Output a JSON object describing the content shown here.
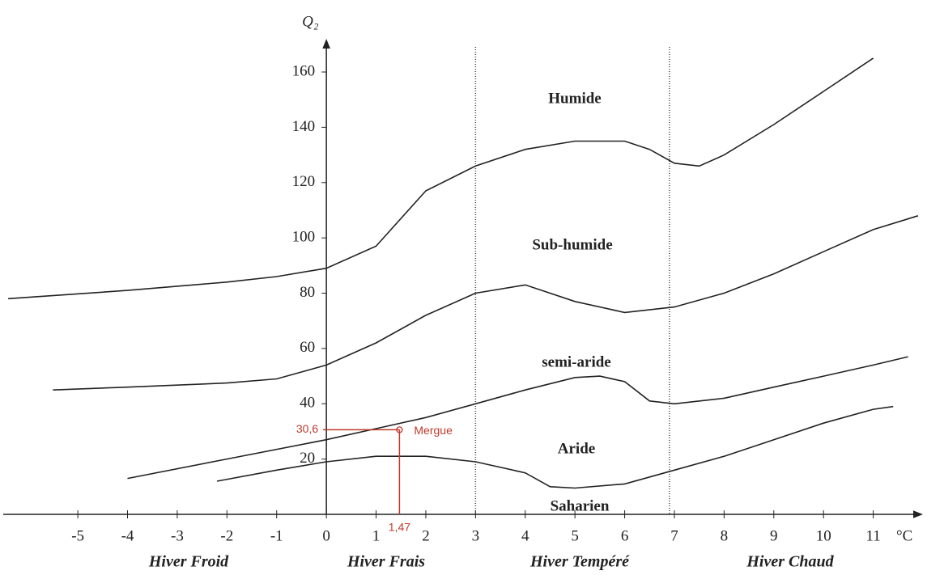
{
  "chart_data": {
    "type": "line",
    "y_label": "Q₂",
    "x_label": "°C",
    "xlim": [
      -6.5,
      12
    ],
    "ylim": [
      0,
      172
    ],
    "xticks": [
      -5,
      -4,
      -3,
      -2,
      -1,
      0,
      1,
      2,
      3,
      4,
      5,
      6,
      7,
      8,
      9,
      10,
      11
    ],
    "yticks": [
      20,
      40,
      60,
      80,
      100,
      120,
      140,
      160
    ],
    "dividers": [
      3,
      6.9
    ],
    "zones": [
      "Humide",
      "Sub-humide",
      "semi-aride",
      "Aride",
      "Saharien"
    ],
    "winters": [
      "Hiver Froid",
      "Hiver Frais",
      "Hiver Tempéré",
      "Hiver Chaud"
    ],
    "color": "#222222",
    "series": [
      {
        "x": [
          -6.4,
          -4,
          -2,
          -1,
          0,
          1,
          2,
          3,
          4,
          5,
          6,
          6.5,
          7,
          7.5,
          8,
          9,
          10,
          11
        ],
        "values": [
          78,
          81,
          84,
          86,
          89,
          97,
          117,
          126,
          132,
          135,
          135,
          132,
          127,
          126,
          130,
          141,
          153,
          165
        ]
      },
      {
        "x": [
          -5.5,
          -4,
          -2,
          -1,
          0,
          1,
          2,
          3,
          4,
          5,
          6,
          7,
          8,
          9,
          10,
          11,
          11.9
        ],
        "values": [
          45,
          46,
          47.5,
          49,
          54,
          62,
          72,
          80,
          83,
          77,
          73,
          75,
          80,
          87,
          95,
          103,
          108
        ]
      },
      {
        "x": [
          -4,
          -2,
          0,
          1,
          2,
          3,
          4,
          5,
          5.5,
          6,
          6.5,
          7,
          8,
          9,
          10,
          11,
          11.7
        ],
        "values": [
          13,
          20,
          27,
          31,
          35,
          40,
          45,
          49.5,
          50,
          48,
          41,
          40,
          42,
          46,
          50,
          54,
          57
        ]
      },
      {
        "x": [
          -2.2,
          -1,
          0,
          1,
          2,
          3,
          4,
          4.5,
          5,
          6,
          7,
          8,
          9,
          10,
          11,
          11.4
        ],
        "values": [
          12,
          16,
          19,
          21,
          21,
          19,
          15,
          10,
          9.5,
          11,
          16,
          21,
          27,
          33,
          38,
          39
        ]
      }
    ],
    "point": {
      "x": 1.47,
      "y": 30.6,
      "label": "Mergue",
      "x_label": "1,47",
      "y_label": "30,6",
      "color": "#c0392b"
    }
  }
}
